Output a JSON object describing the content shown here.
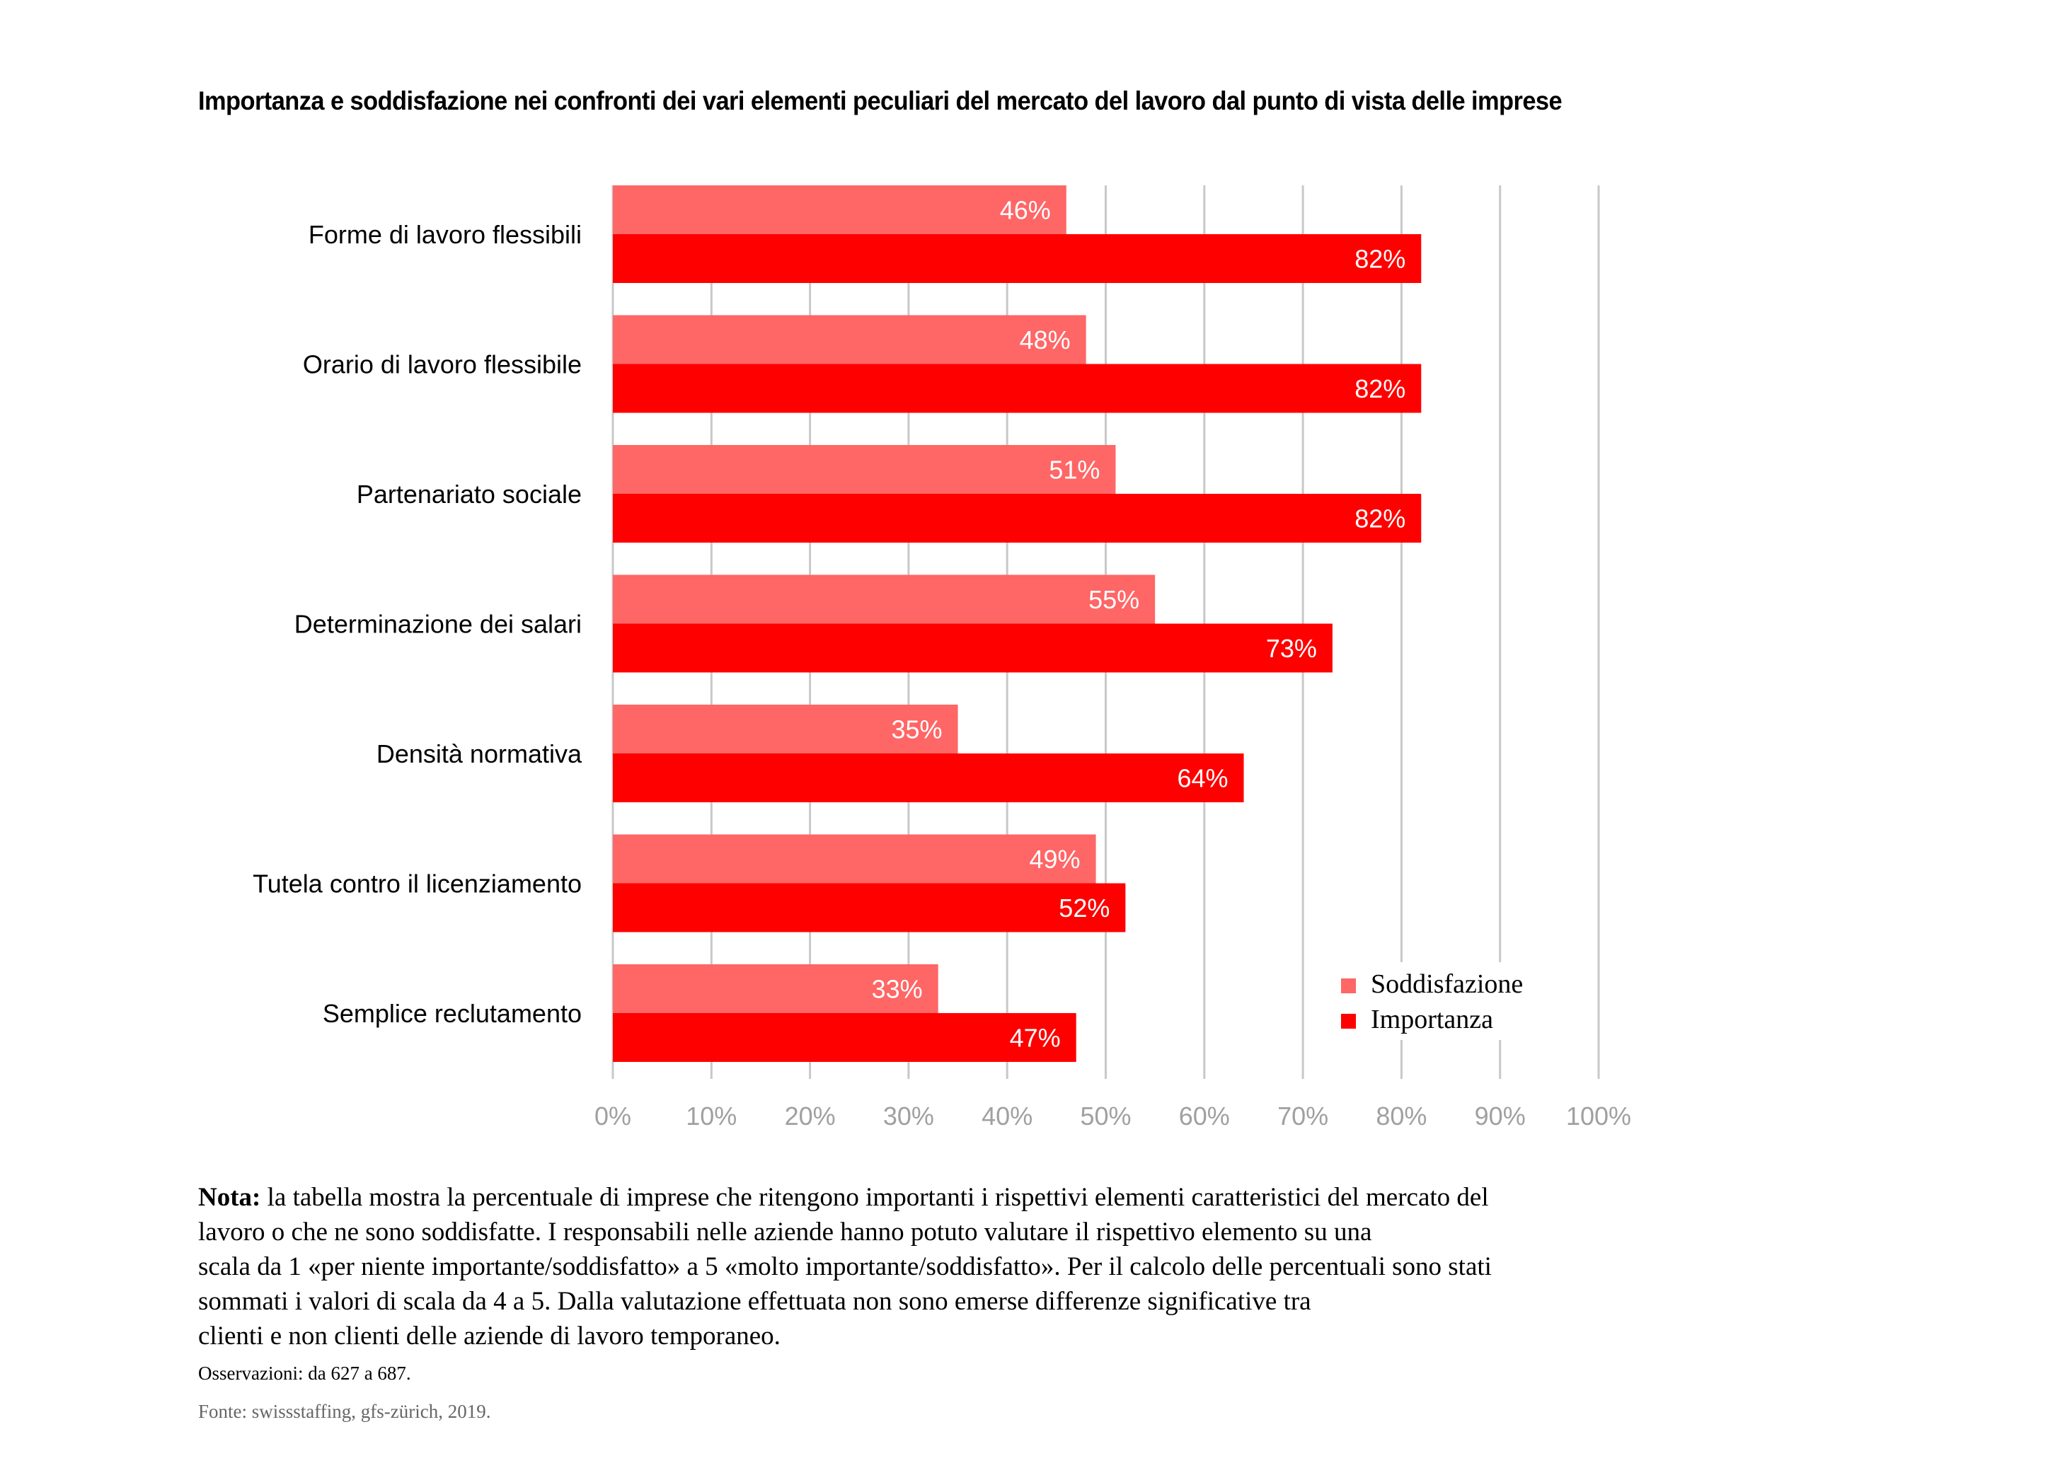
{
  "chart_data": {
    "type": "bar",
    "orientation": "horizontal",
    "title": "Importanza e soddisfazione nei confronti dei vari elementi peculiari del mercato del lavoro dal punto di vista delle imprese",
    "categories": [
      "Forme di lavoro flessibili",
      "Orario di lavoro flessibile",
      "Partenariato sociale",
      "Determinazione dei salari",
      "Densità normativa",
      "Tutela contro il licenziamento",
      "Semplice reclutamento"
    ],
    "series": [
      {
        "name": "Soddisfazione",
        "color": "#FF6666",
        "values": [
          46,
          48,
          51,
          55,
          35,
          49,
          33
        ]
      },
      {
        "name": "Importanza",
        "color": "#FF0000",
        "values": [
          82,
          82,
          82,
          73,
          64,
          52,
          47
        ]
      }
    ],
    "data_labels": {
      "Soddisfazione": [
        "46%",
        "48%",
        "51%",
        "55%",
        "35%",
        "49%",
        "33%"
      ],
      "Importanza": [
        "82%",
        "82%",
        "82%",
        "73%",
        "64%",
        "52%",
        "47%"
      ]
    },
    "xlabel": "",
    "ylabel": "",
    "xlim": [
      0,
      100
    ],
    "x_ticks": [
      "0%",
      "10%",
      "20%",
      "30%",
      "40%",
      "50%",
      "60%",
      "70%",
      "80%",
      "90%",
      "100%"
    ],
    "grid": true,
    "legend_position": "bottom-right",
    "gridline_color": "#C8C8C8",
    "tick_label_color": "#A0A0A0"
  },
  "note": {
    "label": "Nota:",
    "lines": [
      " la tabella mostra la percentuale di imprese che ritengono importanti i rispettivi elementi caratteristici del mercato del",
      "lavoro o che ne sono soddisfatte. I responsabili nelle aziende hanno potuto valutare il rispettivo elemento su una",
      "scala da 1 «per niente importante/soddisfatto» a 5 «molto importante/soddisfatto». Per il calcolo delle percentuali sono stati",
      "sommati i valori di scala da 4 a 5. Dalla valutazione effettuata non sono emerse differenze significative tra",
      "clienti e non clienti delle aziende di lavoro temporaneo."
    ]
  },
  "observations": "Osservazioni: da 627 a 687.",
  "source": "Fonte: swissstaffing, gfs-zürich, 2019."
}
